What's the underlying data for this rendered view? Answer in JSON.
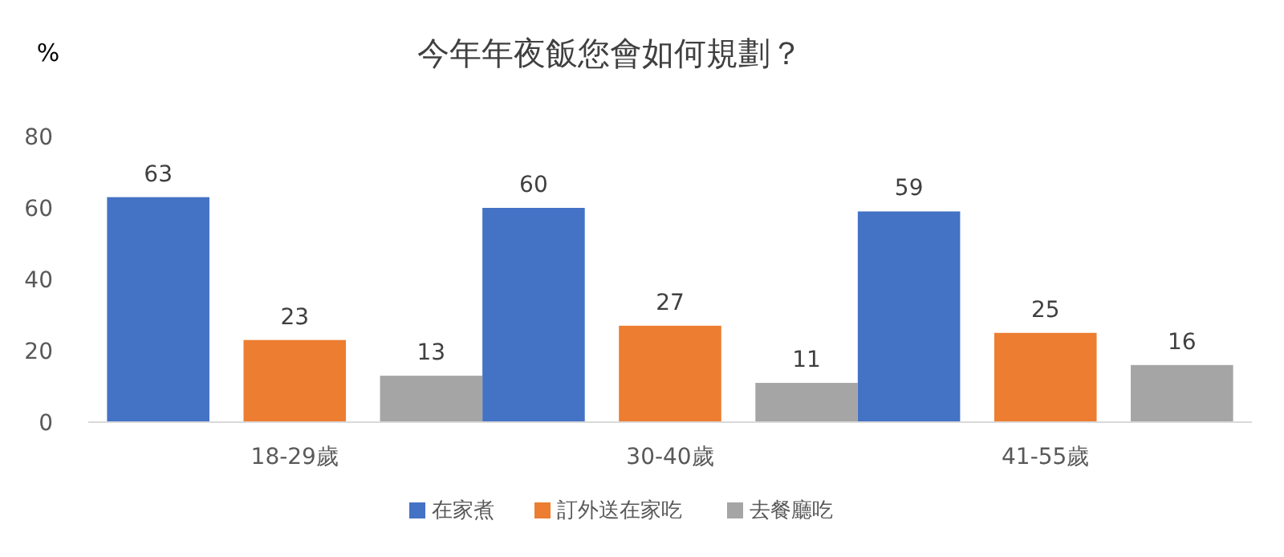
{
  "chart_data": {
    "type": "bar",
    "title": "今年年夜飯您會如何規劃？",
    "ylabel": "%",
    "categories": [
      "18-29歲",
      "30-40歲",
      "41-55歲"
    ],
    "series": [
      {
        "name": "在家煮",
        "color": "#4472c4",
        "values": [
          63,
          60,
          59
        ]
      },
      {
        "name": "訂外送在家吃",
        "color": "#ed7d31",
        "values": [
          23,
          27,
          25
        ]
      },
      {
        "name": "去餐廳吃",
        "color": "#a5a5a5",
        "values": [
          13,
          11,
          16
        ]
      }
    ],
    "ylim": [
      0,
      80
    ],
    "yticks": [
      0,
      20,
      40,
      60,
      80
    ],
    "grid": false,
    "legend": "bottom",
    "data_labels": true
  }
}
